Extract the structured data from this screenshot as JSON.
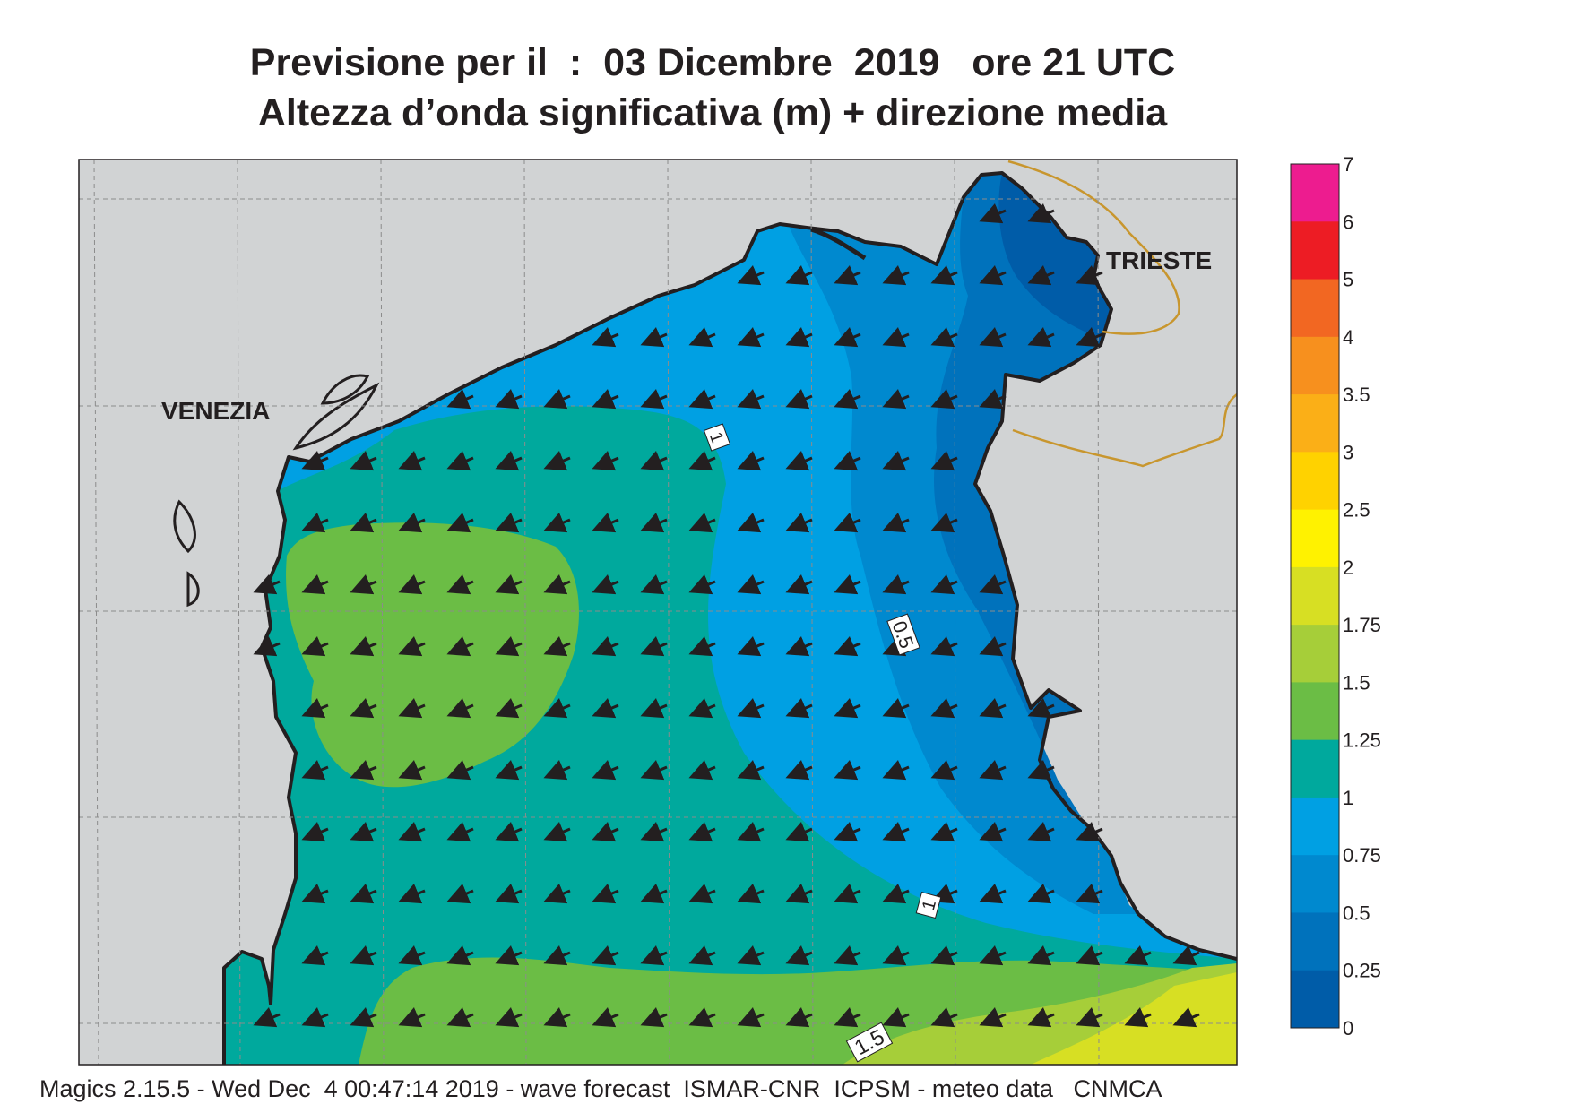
{
  "title": {
    "line1": "Previsione per il  :  03 Dicembre  2019   ore 21 UTC",
    "line2": "Altezza d’onda significativa (m) + direzione media"
  },
  "map": {
    "region": "Northern Adriatic Sea",
    "places": [
      {
        "name": "VENEZIA",
        "label": "VENEZIA"
      },
      {
        "name": "TRIESTE",
        "label": "TRIESTE"
      }
    ],
    "contour_labels": [
      "1",
      "0.5",
      "1",
      "1.5"
    ],
    "wave_direction": "mostly from east-northeast (arrows pointing west-southwest)",
    "colors": {
      "land": "#d1d3d4",
      "coastline": "#231f20",
      "border": "#c8962e",
      "arrow": "#231f20"
    }
  },
  "legend": {
    "unit": "m",
    "ticks": [
      "7",
      "6",
      "5",
      "4",
      "3.5",
      "3",
      "2.5",
      "2",
      "1.75",
      "1.5",
      "1.25",
      "1",
      "0.75",
      "0.5",
      "0.25",
      "0"
    ],
    "colors": [
      "#ed1c8f",
      "#ed1c24",
      "#f26722",
      "#f7901e",
      "#fbaf17",
      "#ffd200",
      "#fff200",
      "#d7df23",
      "#a6ce39",
      "#6bbd45",
      "#00a99d",
      "#00a0e3",
      "#0089cf",
      "#0072bc",
      "#005ca8"
    ]
  },
  "footer": "Magics 2.15.5 - Wed Dec  4 00:47:14 2019 - wave forecast  ISMAR-CNR  ICPSM - meteo data   CNMCA"
}
